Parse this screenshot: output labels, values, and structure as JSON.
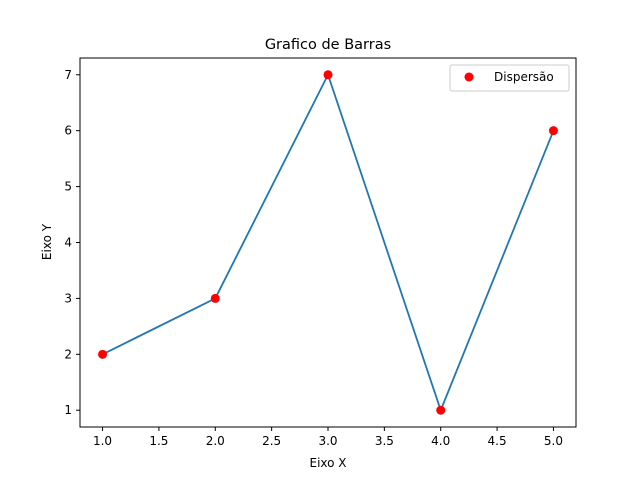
{
  "chart_data": {
    "type": "scatter",
    "title": "Grafico de Barras",
    "xlabel": "Eixo X",
    "ylabel": "Eixo Y",
    "xlim": [
      0.8,
      5.2
    ],
    "ylim": [
      0.7,
      7.3
    ],
    "xticks": [
      1.0,
      1.5,
      2.0,
      2.5,
      3.0,
      3.5,
      4.0,
      4.5,
      5.0
    ],
    "xtick_labels": [
      "1.0",
      "1.5",
      "2.0",
      "2.5",
      "3.0",
      "3.5",
      "4.0",
      "4.5",
      "5.0"
    ],
    "yticks": [
      1,
      2,
      3,
      4,
      5,
      6,
      7
    ],
    "ytick_labels": [
      "1",
      "2",
      "3",
      "4",
      "5",
      "6",
      "7"
    ],
    "grid": false,
    "legend_position": "top-right",
    "series": [
      {
        "kind": "line",
        "color": "#1f77b4",
        "x": [
          1,
          2,
          3,
          4,
          5
        ],
        "y": [
          2,
          3,
          7,
          1,
          6
        ]
      },
      {
        "kind": "scatter",
        "name": "Dispersão",
        "color": "#ff0000",
        "x": [
          1,
          2,
          3,
          4,
          5
        ],
        "y": [
          2,
          3,
          7,
          1,
          6
        ]
      }
    ]
  }
}
